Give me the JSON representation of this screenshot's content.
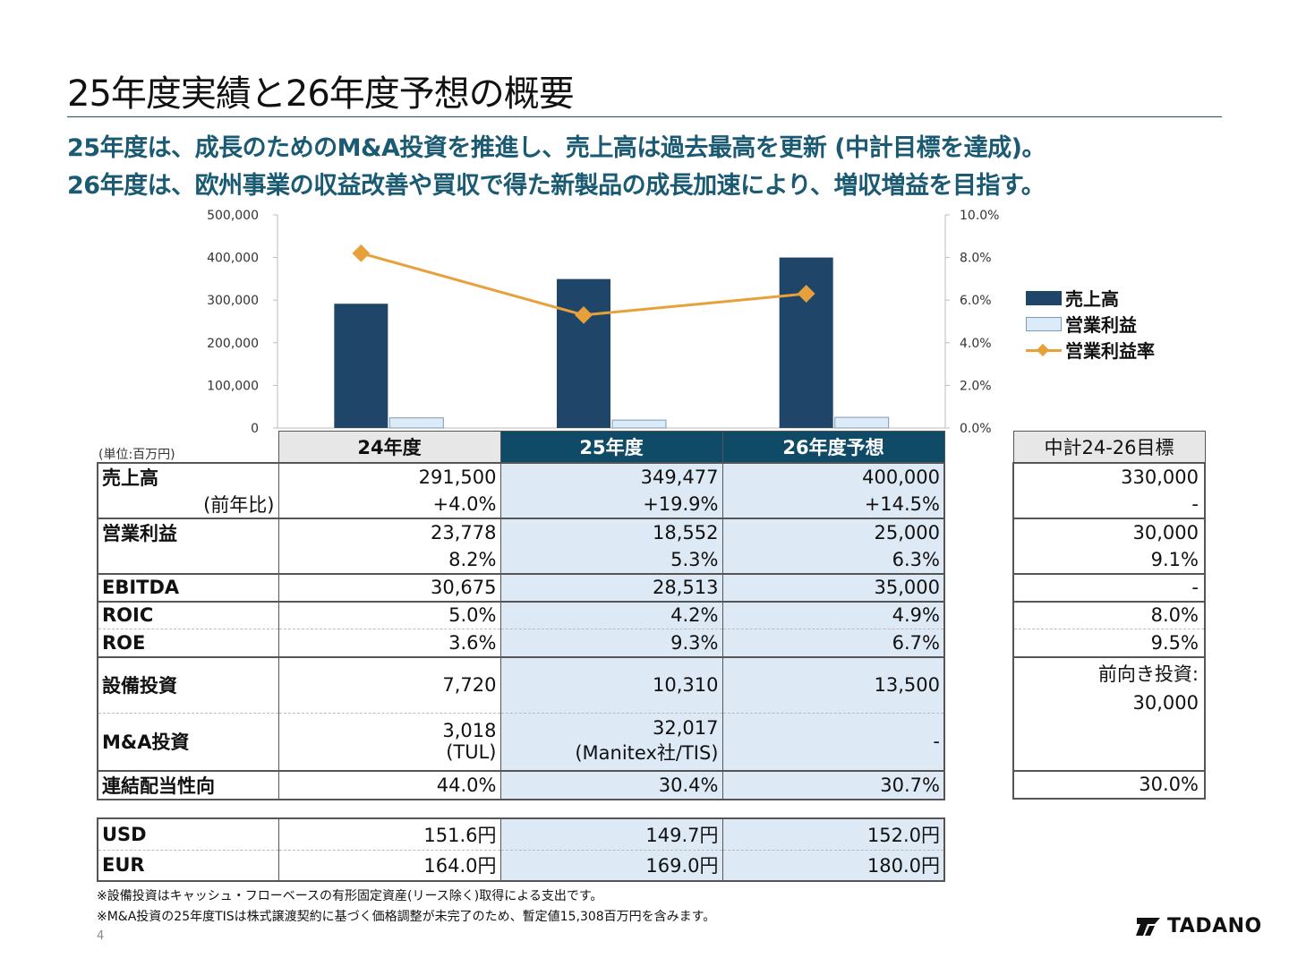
{
  "title": "25年度実績と26年度予想の概要",
  "headline1": "25年度は、成長のためのM&A投資を推進し、売上高は過去最高を更新 (中計目標を達成)。",
  "headline2": "26年度は、欧州事業の収益改善や買収で得た新製品の成長加速により、増収増益を目指す。",
  "chart_data": {
    "type": "bar",
    "categories": [
      "24年度",
      "25年度",
      "26年度予想"
    ],
    "series": [
      {
        "name": "売上高",
        "type": "bar",
        "axis": "left",
        "values": [
          291500,
          349477,
          400000
        ],
        "color": "#1f4669"
      },
      {
        "name": "営業利益",
        "type": "bar",
        "axis": "left",
        "values": [
          23778,
          18552,
          25000
        ],
        "color": "#dcebf8"
      },
      {
        "name": "営業利益率",
        "type": "line",
        "axis": "right",
        "values": [
          8.2,
          5.3,
          6.3
        ],
        "color": "#e8a13a"
      }
    ],
    "ylim": [
      0,
      500000
    ],
    "y2lim": [
      0,
      10
    ],
    "yticks": [
      "0",
      "100,000",
      "200,000",
      "300,000",
      "400,000",
      "500,000"
    ],
    "y2ticks": [
      "0.0%",
      "2.0%",
      "4.0%",
      "6.0%",
      "8.0%",
      "10.0%"
    ],
    "legend_position": "right",
    "grid": false
  },
  "legend": {
    "sales": "売上高",
    "op": "営業利益",
    "margin": "営業利益率"
  },
  "table": {
    "unit": "(単位:百万円)",
    "headers": [
      "24年度",
      "25年度",
      "26年度予想"
    ],
    "target_header": "中計24-26目標",
    "sales_label": "売上高",
    "yoy_label": "(前年比)",
    "sales": [
      "291,500",
      "349,477",
      "400,000"
    ],
    "sales_yoy": [
      "+4.0%",
      "+19.9%",
      "+14.5%"
    ],
    "op_label": "営業利益",
    "op": [
      "23,778",
      "18,552",
      "25,000"
    ],
    "op_margin": [
      "8.2%",
      "5.3%",
      "6.3%"
    ],
    "ebitda_label": "EBITDA",
    "ebitda": [
      "30,675",
      "28,513",
      "35,000"
    ],
    "roic_label": "ROIC",
    "roic": [
      "5.0%",
      "4.2%",
      "4.9%"
    ],
    "roe_label": "ROE",
    "roe": [
      "3.6%",
      "9.3%",
      "6.7%"
    ],
    "capex_label": "設備投資",
    "capex": [
      "7,720",
      "10,310",
      "13,500"
    ],
    "ma_label": "M&A投資",
    "ma": [
      "3,018",
      "32,017",
      "-"
    ],
    "ma_note": [
      "(TUL)",
      "(Manitex社/TIS)",
      ""
    ],
    "payout_label": "連結配当性向",
    "payout": [
      "44.0%",
      "30.4%",
      "30.7%"
    ],
    "target": {
      "sales": "330,000",
      "sales_yoy": "-",
      "op": "30,000",
      "op_margin": "9.1%",
      "ebitda": "-",
      "roic": "8.0%",
      "roe": "9.5%",
      "capex_line1": "前向き投資:",
      "capex_line2": "30,000",
      "payout": "30.0%"
    }
  },
  "fx": {
    "usd_label": "USD",
    "usd": [
      "151.6円",
      "149.7円",
      "152.0円"
    ],
    "eur_label": "EUR",
    "eur": [
      "164.0円",
      "169.0円",
      "180.0円"
    ]
  },
  "footnote1": "※設備投資はキャッシュ・フローベースの有形固定資産(リース除く)取得による支出です。",
  "footnote2": "※M&A投資の25年度TISは株式譲渡契約に基づく価格調整が未完了のため、暫定値15,308百万円を含みます。",
  "page_number": "4",
  "logo_text": "TADANO"
}
